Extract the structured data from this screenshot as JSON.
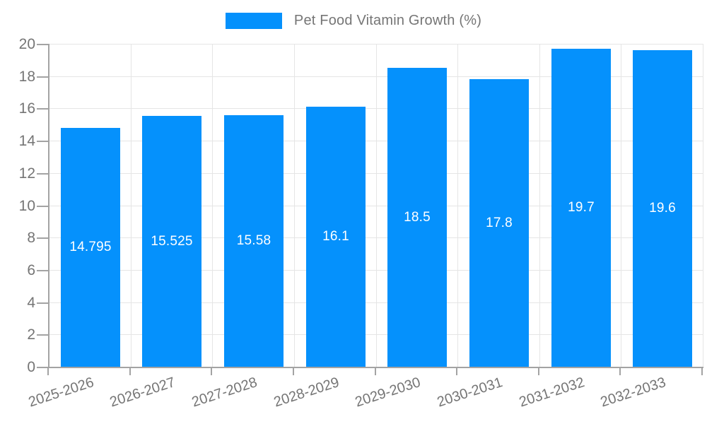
{
  "legend": {
    "label": "Pet Food Vitamin Growth (%)",
    "swatch_color": "#0591fc"
  },
  "chart_data": {
    "type": "bar",
    "title": "Pet Food Vitamin Growth (%)",
    "categories": [
      "2025-2026",
      "2026-2027",
      "2027-2028",
      "2028-2029",
      "2029-2030",
      "2030-2031",
      "2031-2032",
      "2032-2033"
    ],
    "values": [
      14.795,
      15.525,
      15.58,
      16.1,
      18.5,
      17.8,
      19.7,
      19.6
    ],
    "value_labels": [
      "14.795",
      "15.525",
      "15.58",
      "16.1",
      "18.5",
      "17.8",
      "19.7",
      "19.6"
    ],
    "xlabel": "",
    "ylabel": "",
    "ylim": [
      0,
      20
    ],
    "ytick_step": 2,
    "ytick_labels": [
      "0",
      "2",
      "4",
      "6",
      "8",
      "10",
      "12",
      "14",
      "16",
      "18",
      "20"
    ],
    "grid": true,
    "legend_position": "top-center",
    "bar_color": "#0591fc",
    "bar_label_color": "#ffffff",
    "axis_color": "#a3a3a3",
    "grid_color": "#e5e5e5",
    "text_color": "#757575"
  }
}
